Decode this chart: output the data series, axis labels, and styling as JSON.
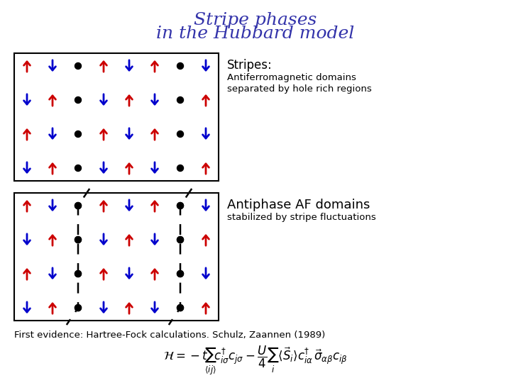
{
  "title_line1": "Stripe phases",
  "title_line2": "in the Hubbard model",
  "title_color": "#3333aa",
  "title_fontsize": 18,
  "box1_label": "Stripes:",
  "box1_desc1": "Antiferromagnetic domains",
  "box1_desc2": "separated by hole rich regions",
  "box2_label": "Antiphase AF domains",
  "box2_desc": "stabilized by stripe fluctuations",
  "footer": "First evidence: Hartree-Fock calculations. Schulz, Zaannen (1989)",
  "red": "#cc0000",
  "blue": "#0000cc",
  "black": "#000000",
  "bg": "#ffffff",
  "grid_cols": 8,
  "grid_rows": 4
}
